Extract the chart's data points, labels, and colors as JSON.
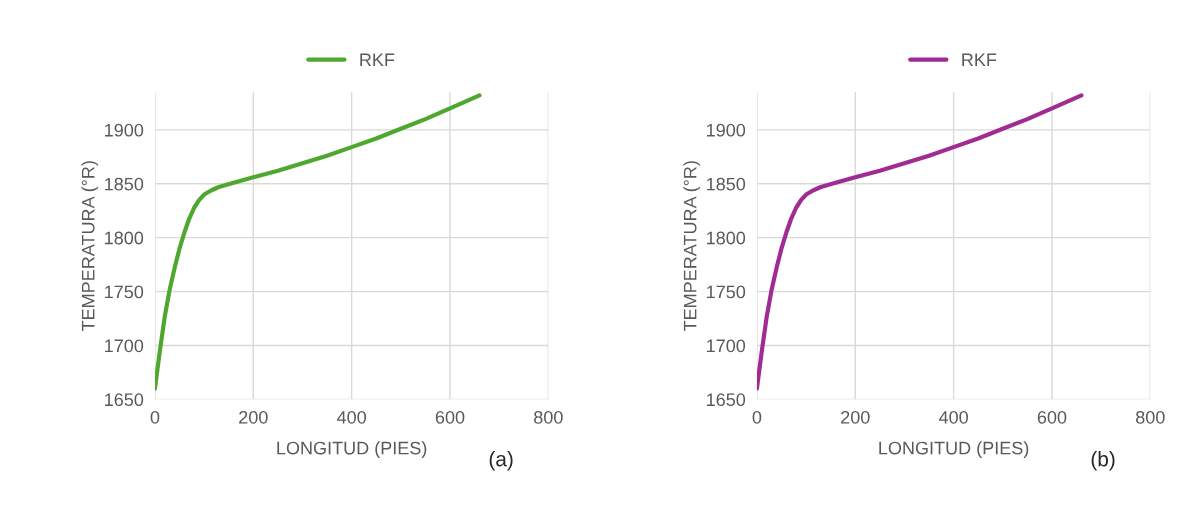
{
  "chart_data": [
    {
      "type": "line",
      "xlabel": "LONGITUD (PIES)",
      "ylabel": "TEMPERATURA (°R)",
      "annotations": [
        "(a)"
      ],
      "xlim": [
        0,
        800
      ],
      "xticks": [
        0,
        200,
        400,
        600,
        800
      ],
      "ylim": [
        1650,
        1935
      ],
      "yticks": [
        1650,
        1700,
        1750,
        1800,
        1850,
        1900
      ],
      "grid": true,
      "legend": "top",
      "marker": "none",
      "line_style": "solid",
      "series": [
        {
          "name": "RKF",
          "color": "#4ea72e",
          "x": [
            0,
            10,
            20,
            30,
            40,
            50,
            60,
            70,
            80,
            90,
            100,
            115,
            130,
            160,
            200,
            250,
            300,
            350,
            400,
            450,
            500,
            550,
            600,
            630,
            660
          ],
          "values": [
            1660,
            1695,
            1727,
            1752,
            1772,
            1790,
            1805,
            1818,
            1828,
            1835,
            1840,
            1844,
            1847,
            1851,
            1856,
            1862,
            1869,
            1876,
            1884,
            1892,
            1901,
            1910,
            1920,
            1926,
            1932
          ]
        }
      ]
    },
    {
      "type": "line",
      "xlabel": "LONGITUD (PIES)",
      "ylabel": "TEMPERATURA (°R)",
      "annotations": [
        "(b)"
      ],
      "xlim": [
        0,
        800
      ],
      "xticks": [
        0,
        200,
        400,
        600,
        800
      ],
      "ylim": [
        1650,
        1935
      ],
      "yticks": [
        1650,
        1700,
        1750,
        1800,
        1850,
        1900
      ],
      "grid": true,
      "legend": "top",
      "marker": "none",
      "line_style": "solid",
      "series": [
        {
          "name": "RKF",
          "color": "#a02b93",
          "x": [
            0,
            10,
            20,
            30,
            40,
            50,
            60,
            70,
            80,
            90,
            100,
            115,
            130,
            160,
            200,
            250,
            300,
            350,
            400,
            450,
            500,
            550,
            600,
            630,
            660
          ],
          "values": [
            1660,
            1695,
            1727,
            1752,
            1772,
            1790,
            1805,
            1818,
            1828,
            1835,
            1840,
            1844,
            1847,
            1851,
            1856,
            1862,
            1869,
            1876,
            1884,
            1892,
            1901,
            1910,
            1920,
            1926,
            1932
          ]
        }
      ]
    }
  ]
}
